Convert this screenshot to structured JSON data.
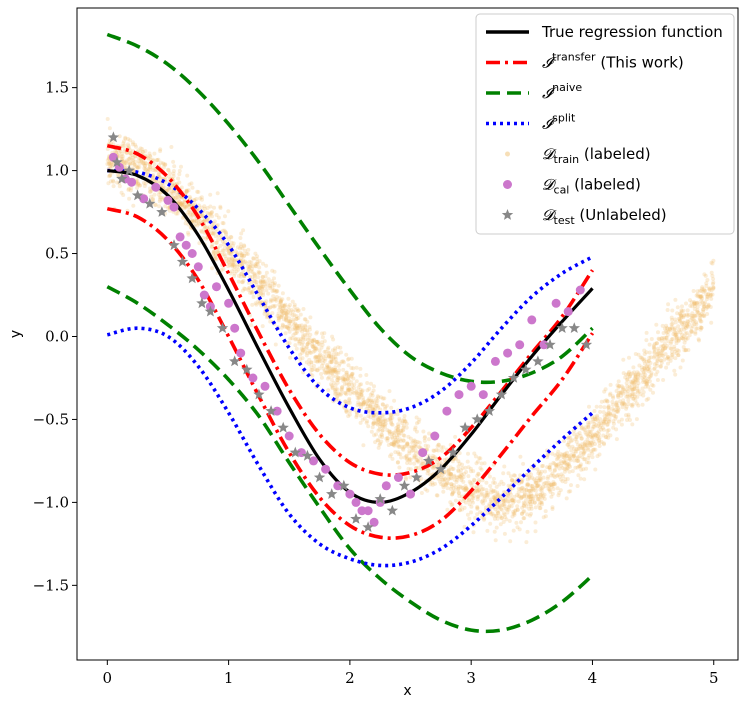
{
  "chart_data": {
    "type": "line",
    "title": "",
    "xlabel": "x",
    "ylabel": "y",
    "xlim": [
      -0.25,
      5.2
    ],
    "ylim": [
      -1.95,
      1.98
    ],
    "xticks": [
      0,
      1,
      2,
      3,
      4,
      5
    ],
    "xtick_labels": [
      "0",
      "1",
      "2",
      "3",
      "4",
      "5"
    ],
    "yticks": [
      -1.5,
      -1.0,
      -0.5,
      0.0,
      0.5,
      1.0,
      1.5
    ],
    "ytick_labels": [
      "−1.5",
      "−1.0",
      "−0.5",
      "0.0",
      "0.5",
      "1.0",
      "1.5"
    ],
    "grid": false,
    "legend_position": "top-right",
    "series": [
      {
        "name": "True regression function",
        "style": "solid",
        "color": "#000000",
        "x": [
          0,
          0.25,
          0.5,
          0.75,
          1.0,
          1.25,
          1.5,
          1.75,
          2.0,
          2.25,
          2.5,
          2.75,
          3.0,
          3.25,
          3.5,
          3.75,
          4.0
        ],
        "y": [
          1.0,
          0.97,
          0.85,
          0.61,
          0.28,
          -0.08,
          -0.43,
          -0.74,
          -0.94,
          -1.0,
          -0.94,
          -0.8,
          -0.59,
          -0.35,
          -0.12,
          0.09,
          0.29
        ]
      },
      {
        "name": "I transfer (This work) upper",
        "style": "dashdot",
        "color": "#ff0000",
        "x": [
          0,
          0.25,
          0.5,
          0.75,
          1.0,
          1.25,
          1.5,
          1.75,
          2.0,
          2.25,
          2.5,
          2.75,
          3.0,
          3.25,
          3.5,
          3.75,
          4.0
        ],
        "y": [
          1.15,
          1.1,
          0.96,
          0.72,
          0.38,
          0.02,
          -0.32,
          -0.59,
          -0.76,
          -0.83,
          -0.82,
          -0.73,
          -0.55,
          -0.33,
          -0.1,
          0.12,
          0.4
        ]
      },
      {
        "name": "I transfer (This work) lower",
        "style": "dashdot",
        "color": "#ff0000",
        "x": [
          0,
          0.25,
          0.5,
          0.75,
          1.0,
          1.25,
          1.5,
          1.75,
          2.0,
          2.25,
          2.5,
          2.75,
          3.0,
          3.25,
          3.5,
          3.75,
          4.0
        ],
        "y": [
          0.77,
          0.72,
          0.58,
          0.34,
          0.0,
          -0.36,
          -0.7,
          -0.97,
          -1.14,
          -1.21,
          -1.2,
          -1.11,
          -0.93,
          -0.71,
          -0.48,
          -0.26,
          0.02
        ]
      },
      {
        "name": "I naive upper",
        "style": "dashed",
        "color": "#008000",
        "x": [
          0,
          0.25,
          0.5,
          0.75,
          1.0,
          1.25,
          1.5,
          1.75,
          2.0,
          2.25,
          2.5,
          2.75,
          3.0,
          3.25,
          3.5,
          3.75,
          4.0
        ],
        "y": [
          1.82,
          1.75,
          1.64,
          1.48,
          1.28,
          1.05,
          0.79,
          0.53,
          0.28,
          0.05,
          -0.12,
          -0.22,
          -0.27,
          -0.27,
          -0.22,
          -0.12,
          0.05
        ]
      },
      {
        "name": "I naive lower",
        "style": "dashed",
        "color": "#008000",
        "x": [
          0,
          0.25,
          0.5,
          0.75,
          1.0,
          1.25,
          1.5,
          1.75,
          2.0,
          2.25,
          2.5,
          2.75,
          3.0,
          3.25,
          3.5,
          3.75,
          4.0
        ],
        "y": [
          0.3,
          0.2,
          0.07,
          -0.08,
          -0.26,
          -0.48,
          -0.76,
          -1.03,
          -1.28,
          -1.46,
          -1.6,
          -1.71,
          -1.77,
          -1.77,
          -1.71,
          -1.6,
          -1.44
        ]
      },
      {
        "name": "I split upper",
        "style": "dotted",
        "color": "#0000ff",
        "x": [
          0,
          0.25,
          0.5,
          0.75,
          1.0,
          1.25,
          1.5,
          1.75,
          2.0,
          2.25,
          2.5,
          2.75,
          3.0,
          3.25,
          3.5,
          3.75,
          4.0
        ],
        "y": [
          1.0,
          0.99,
          0.92,
          0.77,
          0.55,
          0.24,
          -0.07,
          -0.31,
          -0.43,
          -0.46,
          -0.43,
          -0.33,
          -0.16,
          0.05,
          0.24,
          0.38,
          0.48
        ]
      },
      {
        "name": "I split lower",
        "style": "dotted",
        "color": "#0000ff",
        "x": [
          0,
          0.25,
          0.5,
          0.75,
          1.0,
          1.25,
          1.5,
          1.75,
          2.0,
          2.25,
          2.5,
          2.75,
          3.0,
          3.25,
          3.5,
          3.75,
          4.0
        ],
        "y": [
          0.01,
          0.05,
          0.0,
          -0.18,
          -0.46,
          -0.78,
          -1.07,
          -1.25,
          -1.34,
          -1.38,
          -1.36,
          -1.28,
          -1.14,
          -0.97,
          -0.79,
          -0.62,
          -0.46
        ]
      }
    ],
    "scatter_train": {
      "name": "D train (labeled)",
      "color": "#f0c070",
      "x_range": [
        0,
        5
      ],
      "trend_x": [
        0,
        0.25,
        0.5,
        0.75,
        1.0,
        1.25,
        1.5,
        1.75,
        2.0,
        2.25,
        2.5,
        2.75,
        3.0,
        3.25,
        3.5,
        3.75,
        4.0,
        4.25,
        4.5,
        4.75,
        5.0
      ],
      "trend_y": [
        1.08,
        1.02,
        0.9,
        0.73,
        0.52,
        0.3,
        0.08,
        -0.12,
        -0.32,
        -0.5,
        -0.67,
        -0.82,
        -0.93,
        -0.99,
        -0.95,
        -0.8,
        -0.6,
        -0.38,
        -0.15,
        0.05,
        0.28
      ],
      "spread": 0.085,
      "count": 3200
    },
    "scatter_cal": {
      "name": "D cal (labeled)",
      "color": "#cc77cc",
      "x": [
        0.05,
        0.1,
        0.15,
        0.2,
        0.3,
        0.4,
        0.5,
        0.55,
        0.6,
        0.65,
        0.7,
        0.75,
        0.8,
        0.85,
        0.9,
        1.0,
        1.05,
        1.1,
        1.2,
        1.3,
        1.4,
        1.5,
        1.6,
        1.7,
        1.8,
        1.9,
        2.0,
        2.05,
        2.1,
        2.15,
        2.2,
        2.25,
        2.3,
        2.4,
        2.5,
        2.6,
        2.7,
        2.8,
        2.9,
        3.0,
        3.1,
        3.2,
        3.3,
        3.4,
        3.5,
        3.6,
        3.7,
        3.8,
        3.9
      ],
      "y": [
        1.08,
        1.02,
        0.95,
        0.93,
        0.83,
        0.9,
        0.82,
        0.78,
        0.6,
        0.55,
        0.5,
        0.42,
        0.25,
        0.18,
        0.3,
        0.2,
        0.05,
        -0.1,
        -0.25,
        -0.3,
        -0.45,
        -0.6,
        -0.7,
        -0.75,
        -0.8,
        -0.9,
        -0.95,
        -1.0,
        -1.05,
        -1.05,
        -1.12,
        -1.0,
        -0.9,
        -0.85,
        -0.95,
        -0.7,
        -0.6,
        -0.45,
        -0.35,
        -0.3,
        -0.35,
        -0.15,
        -0.1,
        -0.05,
        0.1,
        -0.05,
        0.2,
        0.15,
        0.28
      ]
    },
    "scatter_test": {
      "name": "D test (Unlabeled)",
      "color": "#888888",
      "x": [
        0.05,
        0.08,
        0.12,
        0.18,
        0.25,
        0.35,
        0.45,
        0.55,
        0.62,
        0.7,
        0.78,
        0.85,
        0.95,
        1.05,
        1.15,
        1.25,
        1.35,
        1.45,
        1.55,
        1.65,
        1.75,
        1.85,
        1.95,
        2.05,
        2.15,
        2.25,
        2.35,
        2.45,
        2.55,
        2.65,
        2.75,
        2.85,
        2.95,
        3.05,
        3.15,
        3.25,
        3.35,
        3.45,
        3.55,
        3.65,
        3.75,
        3.85,
        3.95
      ],
      "y": [
        1.2,
        1.05,
        0.95,
        1.0,
        0.85,
        0.8,
        0.75,
        0.55,
        0.45,
        0.35,
        0.2,
        0.15,
        0.05,
        -0.15,
        -0.2,
        -0.35,
        -0.45,
        -0.55,
        -0.7,
        -0.72,
        -0.85,
        -0.95,
        -0.9,
        -1.1,
        -1.15,
        -0.98,
        -1.05,
        -0.9,
        -0.85,
        -0.75,
        -0.8,
        -0.7,
        -0.55,
        -0.5,
        -0.45,
        -0.35,
        -0.25,
        -0.2,
        -0.15,
        -0.05,
        0.05,
        0.05,
        -0.05
      ]
    },
    "legend": [
      {
        "text": "True regression function"
      },
      {
        "sym": "𝓘",
        "sup": "transfer",
        "text": " (This work)"
      },
      {
        "sym": "𝓘",
        "sup": "naive",
        "text": ""
      },
      {
        "sym": "𝓘",
        "sup": "split",
        "text": ""
      },
      {
        "sym": "𝓓",
        "sub": "train",
        "text": " (labeled)"
      },
      {
        "sym": "𝓓",
        "sub": "cal",
        "text": " (labeled)"
      },
      {
        "sym": "𝓓",
        "sub": "test",
        "text": " (Unlabeled)"
      }
    ]
  }
}
